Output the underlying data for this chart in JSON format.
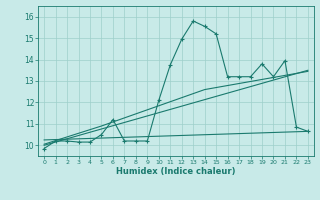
{
  "title": "",
  "xlabel": "Humidex (Indice chaleur)",
  "bg_color": "#c8eae8",
  "grid_color": "#9ecfcb",
  "line_color": "#1a7a6e",
  "xlim": [
    -0.5,
    23.5
  ],
  "ylim": [
    9.5,
    16.5
  ],
  "xticks": [
    0,
    1,
    2,
    3,
    4,
    5,
    6,
    7,
    8,
    9,
    10,
    11,
    12,
    13,
    14,
    15,
    16,
    17,
    18,
    19,
    20,
    21,
    22,
    23
  ],
  "yticks": [
    10,
    11,
    12,
    13,
    14,
    15,
    16
  ],
  "line1_x": [
    0,
    1,
    2,
    3,
    4,
    5,
    6,
    7,
    8,
    9,
    10,
    11,
    12,
    13,
    14,
    15,
    16,
    17,
    18,
    19,
    20,
    21,
    22,
    23
  ],
  "line1_y": [
    9.85,
    10.2,
    10.2,
    10.15,
    10.15,
    10.5,
    11.2,
    10.2,
    10.2,
    10.2,
    12.1,
    13.75,
    14.95,
    15.8,
    15.55,
    15.2,
    13.2,
    13.2,
    13.2,
    13.8,
    13.2,
    13.95,
    10.85,
    10.65
  ],
  "line2_x": [
    0,
    23
  ],
  "line2_y": [
    10.0,
    13.5
  ],
  "line3_x": [
    0,
    5,
    14,
    23
  ],
  "line3_y": [
    10.05,
    10.9,
    12.6,
    13.45
  ],
  "line4_x": [
    0,
    23
  ],
  "line4_y": [
    10.25,
    10.65
  ]
}
